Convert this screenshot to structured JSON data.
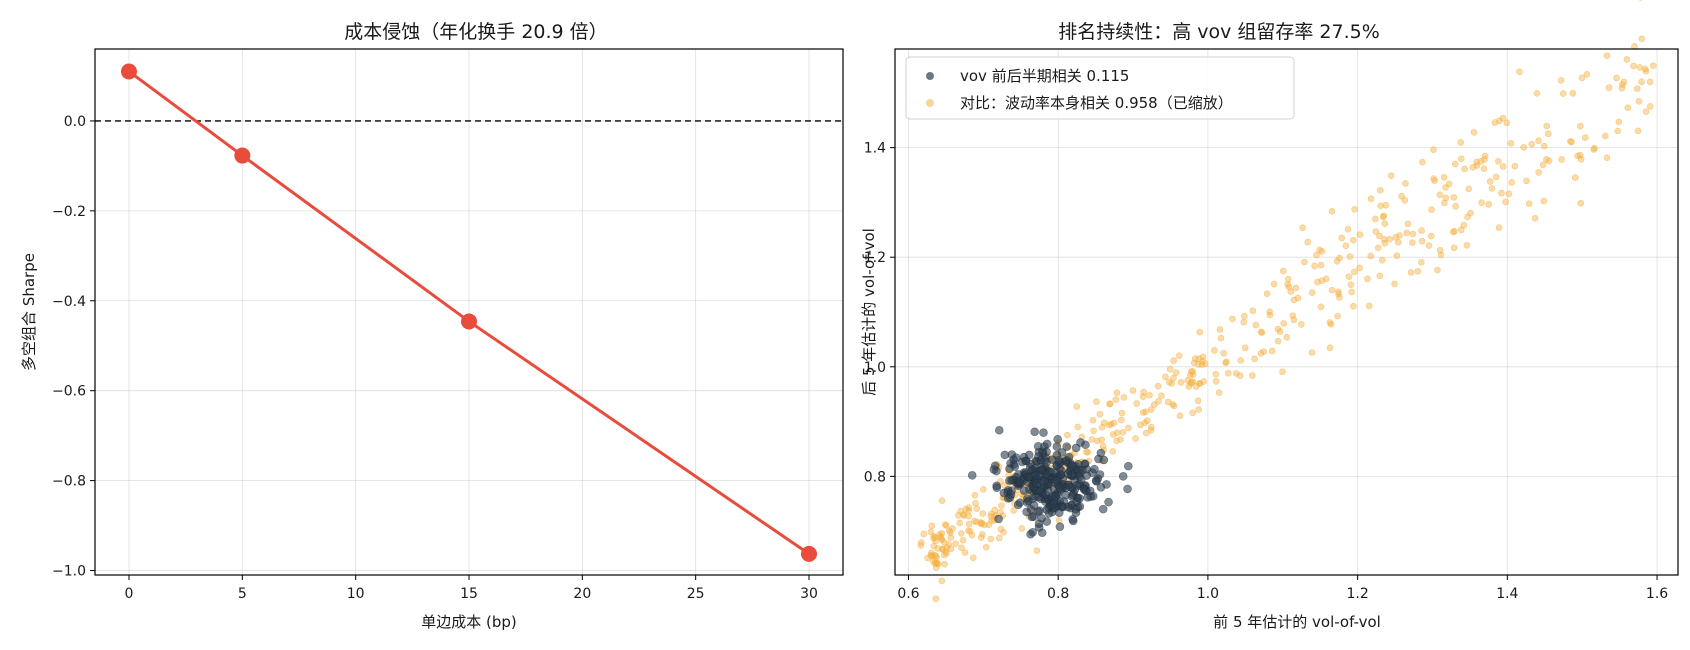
{
  "chart_data": [
    {
      "type": "line",
      "title": "成本侵蚀（年化换手 20.9 倍）",
      "xlabel": "单边成本 (bp)",
      "ylabel": "多空组合 Sharpe",
      "xlim": [
        -1.5,
        31.5
      ],
      "ylim": [
        -1.01,
        0.16
      ],
      "xticks": [
        0,
        5,
        10,
        15,
        20,
        25,
        30
      ],
      "xtick_labels": [
        "0",
        "5",
        "10",
        "15",
        "20",
        "25",
        "30"
      ],
      "yticks": [
        0.0,
        -0.2,
        -0.4,
        -0.6,
        -0.8,
        -1.0
      ],
      "ytick_labels": [
        "0.0",
        "−0.2",
        "−0.4",
        "−0.6",
        "−0.8",
        "−1.0"
      ],
      "grid": true,
      "reference_line": {
        "y": 0.0,
        "style": "dashed",
        "color": "#000000"
      },
      "series": [
        {
          "x": [
            0,
            5,
            15,
            30
          ],
          "y": [
            0.11,
            -0.077,
            -0.446,
            -0.963
          ],
          "color": "#e74c3c",
          "marker": "circle"
        }
      ]
    },
    {
      "type": "scatter",
      "title": "排名持续性：高 vov 组留存率 27.5%",
      "xlabel": "前 5 年估计的 vol-of-vol",
      "ylabel": "后 5 年估计的 vol-of-vol",
      "xlim": [
        0.582,
        1.628
      ],
      "ylim": [
        0.62,
        1.58
      ],
      "xticks": [
        0.6,
        0.8,
        1.0,
        1.2,
        1.4,
        1.6
      ],
      "xtick_labels": [
        "0.6",
        "0.8",
        "1.0",
        "1.2",
        "1.4",
        "1.6"
      ],
      "yticks": [
        0.8,
        1.0,
        1.2,
        1.4
      ],
      "ytick_labels": [
        "0.8",
        "1.0",
        "1.2",
        "1.4"
      ],
      "grid": true,
      "legend_position": "top-left",
      "series": [
        {
          "name": "vov 前后半期相关 0.115",
          "color": "#2c3e50",
          "alpha": 0.6,
          "marker": "circle",
          "correlation": 0.115,
          "x_center": 0.79,
          "x_std": 0.035,
          "y_center": 0.79,
          "y_std": 0.035,
          "count": 300
        },
        {
          "name": "对比：波动率本身相关 0.958（已缩放）",
          "color": "#f5b041",
          "alpha": 0.45,
          "marker": "circle",
          "correlation": 0.958,
          "x_range": [
            0.63,
            1.585
          ],
          "y_range": [
            0.66,
            1.55
          ],
          "count": 500
        }
      ]
    }
  ]
}
